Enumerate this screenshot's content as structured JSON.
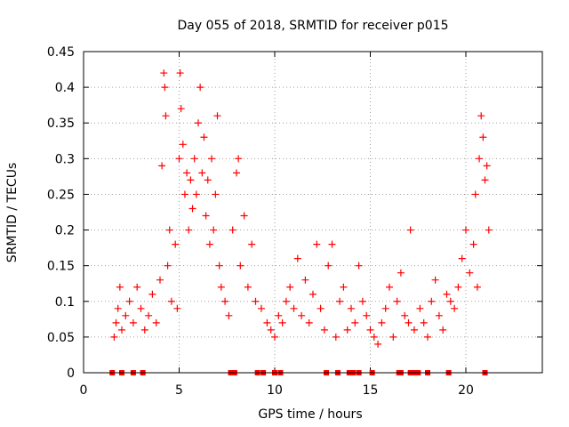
{
  "chart_data": {
    "type": "scatter",
    "title": "Day 055 of 2018, SRMTID for receiver p015",
    "xlabel": "GPS time / hours",
    "ylabel": "SRMTID / TECUs",
    "xlim": [
      0,
      24
    ],
    "ylim": [
      0,
      0.45
    ],
    "xticks": [
      0,
      5,
      10,
      15,
      20
    ],
    "xtick_labels": [
      "0",
      "5",
      "10",
      "15",
      "20"
    ],
    "yticks": [
      0,
      0.05,
      0.1,
      0.15,
      0.2,
      0.25,
      0.3,
      0.35,
      0.4,
      0.45
    ],
    "ytick_labels": [
      "0",
      "0.05",
      "0.1",
      "0.15",
      "0.2",
      "0.25",
      "0.3",
      "0.35",
      "0.4",
      "0.45"
    ],
    "grid": true,
    "marker": "plus",
    "color": "#ff0000",
    "zero_markers_x": [
      1.5,
      2.0,
      2.6,
      3.1,
      7.7,
      7.9,
      9.1,
      9.4,
      10.0,
      10.3,
      12.7,
      13.3,
      13.9,
      14.1,
      14.4,
      15.1,
      16.5,
      16.6,
      17.1,
      17.3,
      17.5,
      18.0,
      19.1,
      21.0
    ],
    "series": [
      {
        "name": "SRMTID",
        "points": [
          [
            1.6,
            0.05
          ],
          [
            1.7,
            0.07
          ],
          [
            1.8,
            0.09
          ],
          [
            1.9,
            0.12
          ],
          [
            2.0,
            0.06
          ],
          [
            2.2,
            0.08
          ],
          [
            2.4,
            0.1
          ],
          [
            2.6,
            0.07
          ],
          [
            2.8,
            0.12
          ],
          [
            3.0,
            0.09
          ],
          [
            3.2,
            0.06
          ],
          [
            3.4,
            0.08
          ],
          [
            3.6,
            0.11
          ],
          [
            3.8,
            0.07
          ],
          [
            4.0,
            0.13
          ],
          [
            4.1,
            0.29
          ],
          [
            4.2,
            0.42
          ],
          [
            4.25,
            0.4
          ],
          [
            4.3,
            0.36
          ],
          [
            4.4,
            0.15
          ],
          [
            4.5,
            0.2
          ],
          [
            4.6,
            0.1
          ],
          [
            4.8,
            0.18
          ],
          [
            4.9,
            0.09
          ],
          [
            5.0,
            0.3
          ],
          [
            5.05,
            0.42
          ],
          [
            5.1,
            0.37
          ],
          [
            5.2,
            0.32
          ],
          [
            5.3,
            0.25
          ],
          [
            5.4,
            0.28
          ],
          [
            5.5,
            0.2
          ],
          [
            5.6,
            0.27
          ],
          [
            5.7,
            0.23
          ],
          [
            5.8,
            0.3
          ],
          [
            5.9,
            0.25
          ],
          [
            6.0,
            0.35
          ],
          [
            6.1,
            0.4
          ],
          [
            6.2,
            0.28
          ],
          [
            6.3,
            0.33
          ],
          [
            6.4,
            0.22
          ],
          [
            6.5,
            0.27
          ],
          [
            6.6,
            0.18
          ],
          [
            6.7,
            0.3
          ],
          [
            6.8,
            0.2
          ],
          [
            6.9,
            0.25
          ],
          [
            7.0,
            0.36
          ],
          [
            7.1,
            0.15
          ],
          [
            7.2,
            0.12
          ],
          [
            7.4,
            0.1
          ],
          [
            7.6,
            0.08
          ],
          [
            7.8,
            0.2
          ],
          [
            8.0,
            0.28
          ],
          [
            8.1,
            0.3
          ],
          [
            8.2,
            0.15
          ],
          [
            8.4,
            0.22
          ],
          [
            8.6,
            0.12
          ],
          [
            8.8,
            0.18
          ],
          [
            9.0,
            0.1
          ],
          [
            9.3,
            0.09
          ],
          [
            9.6,
            0.07
          ],
          [
            9.8,
            0.06
          ],
          [
            10.0,
            0.05
          ],
          [
            10.2,
            0.08
          ],
          [
            10.4,
            0.07
          ],
          [
            10.6,
            0.1
          ],
          [
            10.8,
            0.12
          ],
          [
            11.0,
            0.09
          ],
          [
            11.2,
            0.16
          ],
          [
            11.4,
            0.08
          ],
          [
            11.6,
            0.13
          ],
          [
            11.8,
            0.07
          ],
          [
            12.0,
            0.11
          ],
          [
            12.2,
            0.18
          ],
          [
            12.4,
            0.09
          ],
          [
            12.6,
            0.06
          ],
          [
            12.8,
            0.15
          ],
          [
            13.0,
            0.18
          ],
          [
            13.2,
            0.05
          ],
          [
            13.4,
            0.1
          ],
          [
            13.6,
            0.12
          ],
          [
            13.8,
            0.06
          ],
          [
            14.0,
            0.09
          ],
          [
            14.2,
            0.07
          ],
          [
            14.4,
            0.15
          ],
          [
            14.6,
            0.1
          ],
          [
            14.8,
            0.08
          ],
          [
            15.0,
            0.06
          ],
          [
            15.2,
            0.05
          ],
          [
            15.4,
            0.04
          ],
          [
            15.6,
            0.07
          ],
          [
            15.8,
            0.09
          ],
          [
            16.0,
            0.12
          ],
          [
            16.2,
            0.05
          ],
          [
            16.4,
            0.1
          ],
          [
            16.6,
            0.14
          ],
          [
            16.8,
            0.08
          ],
          [
            17.0,
            0.07
          ],
          [
            17.1,
            0.2
          ],
          [
            17.3,
            0.06
          ],
          [
            17.6,
            0.09
          ],
          [
            17.8,
            0.07
          ],
          [
            18.0,
            0.05
          ],
          [
            18.2,
            0.1
          ],
          [
            18.4,
            0.13
          ],
          [
            18.6,
            0.08
          ],
          [
            18.8,
            0.06
          ],
          [
            19.0,
            0.11
          ],
          [
            19.2,
            0.1
          ],
          [
            19.4,
            0.09
          ],
          [
            19.6,
            0.12
          ],
          [
            19.8,
            0.16
          ],
          [
            20.0,
            0.2
          ],
          [
            20.2,
            0.14
          ],
          [
            20.4,
            0.18
          ],
          [
            20.5,
            0.25
          ],
          [
            20.6,
            0.12
          ],
          [
            20.7,
            0.3
          ],
          [
            20.8,
            0.36
          ],
          [
            20.9,
            0.33
          ],
          [
            21.0,
            0.27
          ],
          [
            21.1,
            0.29
          ],
          [
            21.2,
            0.2
          ]
        ]
      }
    ]
  }
}
